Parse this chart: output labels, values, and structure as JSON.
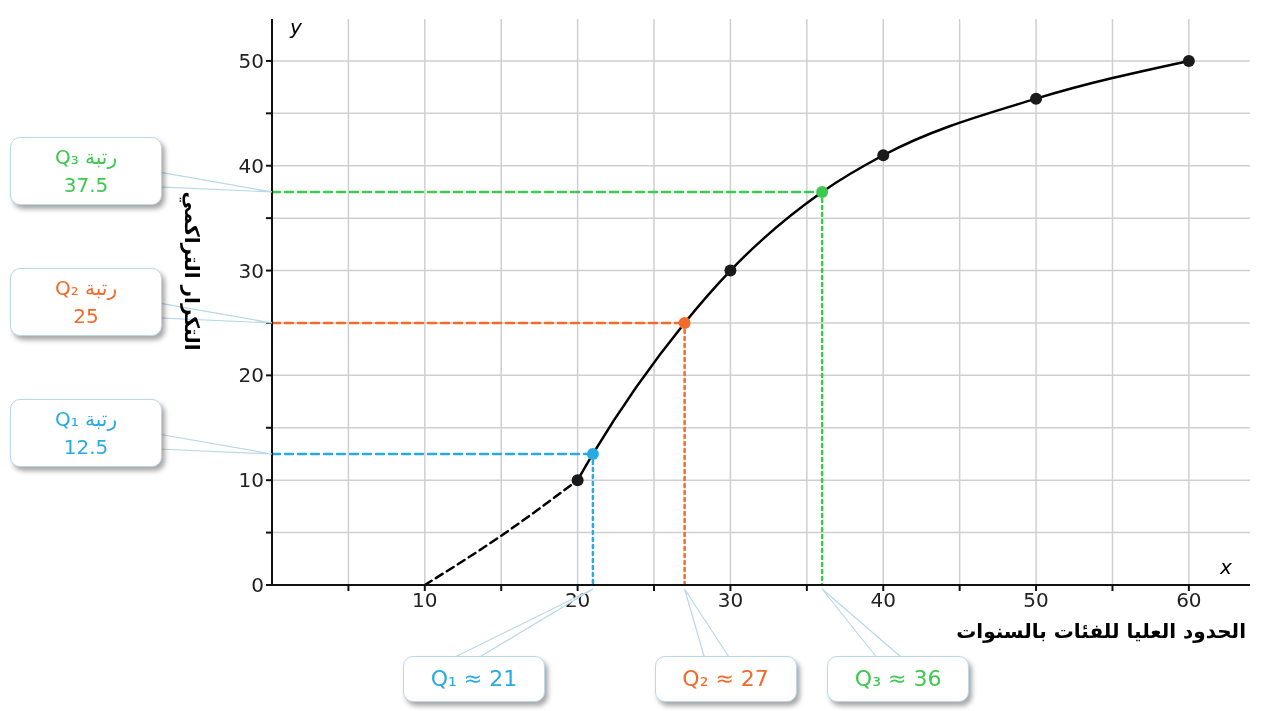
{
  "chart_data": {
    "type": "line",
    "xlabel": "الحدود العليا للفئات بالسنوات",
    "ylabel": "التكرار التراكمي",
    "xlim": [
      0,
      64
    ],
    "ylim": [
      0,
      54
    ],
    "xticks": [
      {
        "value": 5,
        "label": null
      },
      10,
      {
        "value": 15,
        "label": null
      },
      20,
      {
        "value": 25,
        "label": null
      },
      30,
      {
        "value": 35,
        "label": null
      },
      40,
      {
        "value": 45,
        "label": null
      },
      50,
      {
        "value": 55,
        "label": null
      },
      60
    ],
    "yticks": [
      0,
      {
        "value": 5,
        "label": null
      },
      10,
      {
        "value": 15,
        "label": null
      },
      20,
      {
        "value": 25,
        "label": null
      },
      30,
      {
        "value": 35,
        "label": null
      },
      40,
      {
        "value": 45,
        "label": null
      },
      50
    ],
    "grid": true,
    "series": [
      {
        "color": "#000000",
        "x": [
          10,
          15,
          20
        ],
        "values": [
          0,
          4.7,
          10
        ],
        "line_style": "dashed",
        "marker": "none"
      },
      {
        "color": "#000000",
        "x": [
          20,
          21,
          27,
          30,
          36,
          40,
          50,
          60
        ],
        "values": [
          10,
          12.5,
          25,
          30,
          37.5,
          41,
          46.4,
          50
        ],
        "colors": [
          "#1a1a1a",
          "#29abe2",
          "#f26b2c",
          "#1a1a1a",
          "#3cc94f",
          "#1a1a1a",
          "#1a1a1a",
          "#1a1a1a"
        ],
        "line_style": "solid",
        "marker": "circle"
      },
      {
        "color": "#29abe2",
        "x": [
          0,
          21
        ],
        "values": [
          12.5,
          12.5
        ],
        "line_style": "dashed",
        "marker": "none"
      },
      {
        "color": "#29abe2",
        "x": [
          21,
          21
        ],
        "values": [
          12.5,
          0
        ],
        "line_style": "dotted",
        "marker": "none"
      },
      {
        "color": "#f26b2c",
        "x": [
          0,
          27
        ],
        "values": [
          25,
          25
        ],
        "line_style": "dashed",
        "marker": "none"
      },
      {
        "color": "#f26b2c",
        "x": [
          27,
          27
        ],
        "values": [
          25,
          0
        ],
        "line_style": "dotted",
        "marker": "none"
      },
      {
        "color": "#3cc94f",
        "x": [
          0,
          36
        ],
        "values": [
          37.5,
          37.5
        ],
        "line_style": "dashed",
        "marker": "none"
      },
      {
        "color": "#3cc94f",
        "x": [
          36,
          36
        ],
        "values": [
          37.5,
          0
        ],
        "line_style": "dotted",
        "marker": "none"
      }
    ],
    "annotations": [
      "y",
      "x",
      "رتبة Q₃\n37.5",
      "رتبة Q₂\n25",
      "رتبة Q₁\n12.5",
      "Q₁ ≈ 21",
      "Q₂ ≈ 27",
      "Q₃ ≈ 36"
    ]
  }
}
